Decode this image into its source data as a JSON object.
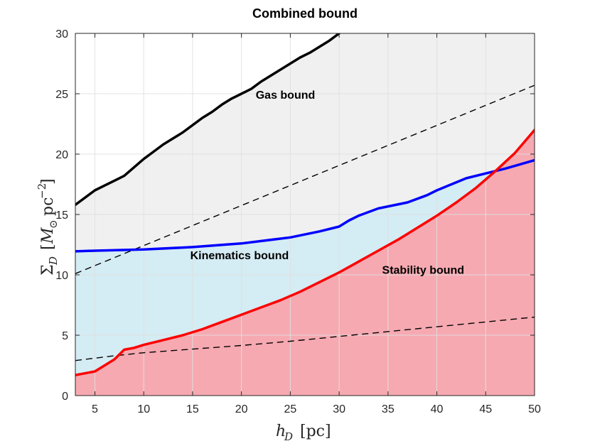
{
  "chart_data": {
    "type": "area",
    "title": "Combined bound",
    "xlabel": "$h_D$ [pc]",
    "ylabel": "$\\Sigma_D$ [$M_\\odot$ pc$^{-2}$]",
    "xlim": [
      3,
      50
    ],
    "ylim": [
      0,
      30
    ],
    "xticks": [
      5,
      10,
      15,
      20,
      25,
      30,
      35,
      40,
      45,
      50
    ],
    "yticks": [
      0,
      5,
      10,
      15,
      20,
      25,
      30
    ],
    "grid": true,
    "series": [
      {
        "name": "Gas bound",
        "color": "#000000",
        "fill": "#f0f0f0",
        "x": [
          3,
          4,
          5,
          6,
          7,
          8,
          9,
          10,
          11,
          12,
          13,
          14,
          15,
          16,
          17,
          18,
          19,
          20,
          21,
          22,
          23,
          24,
          25,
          26,
          27,
          28,
          29,
          30
        ],
        "y": [
          15.8,
          16.4,
          17.0,
          17.4,
          17.8,
          18.2,
          18.9,
          19.6,
          20.2,
          20.8,
          21.3,
          21.8,
          22.4,
          23.0,
          23.5,
          24.1,
          24.6,
          25.0,
          25.4,
          26.0,
          26.5,
          27.0,
          27.5,
          28.0,
          28.4,
          28.9,
          29.4,
          30.0
        ]
      },
      {
        "name": "Kinematics bound",
        "color": "#0000ff",
        "fill": "#d4ecf3",
        "x": [
          3,
          5,
          10,
          15,
          20,
          25,
          28,
          30,
          31,
          32,
          34,
          37,
          39,
          40,
          43,
          45,
          47,
          50
        ],
        "y": [
          11.95,
          12.0,
          12.1,
          12.3,
          12.6,
          13.1,
          13.6,
          14.0,
          14.5,
          14.9,
          15.5,
          16.0,
          16.6,
          17.0,
          18.0,
          18.4,
          18.8,
          19.5
        ]
      },
      {
        "name": "Stability bound",
        "color": "#ff0000",
        "fill": "#f6a9b1",
        "x": [
          3,
          5,
          7,
          8,
          9,
          10,
          12,
          14,
          16,
          18,
          20,
          22,
          24,
          26,
          28,
          30,
          32,
          34,
          36,
          38,
          40,
          42,
          44,
          46,
          48,
          50
        ],
        "y": [
          1.7,
          2.0,
          3.0,
          3.8,
          3.95,
          4.2,
          4.6,
          5.0,
          5.5,
          6.1,
          6.7,
          7.3,
          7.9,
          8.6,
          9.4,
          10.2,
          11.1,
          12.0,
          12.9,
          13.9,
          14.9,
          16.0,
          17.2,
          18.6,
          20.1,
          22.0
        ]
      }
    ],
    "reference_lines": [
      {
        "style": "dashed",
        "color": "#000000",
        "x": [
          3,
          50
        ],
        "y": [
          10.1,
          25.7
        ]
      },
      {
        "style": "dashed",
        "color": "#000000",
        "x": [
          3,
          7,
          10,
          15,
          20,
          25,
          30,
          35,
          40,
          45,
          50
        ],
        "y": [
          2.9,
          3.3,
          3.55,
          3.85,
          4.15,
          4.5,
          4.9,
          5.3,
          5.7,
          6.1,
          6.5
        ]
      }
    ],
    "annotations": [
      {
        "text": "Gas bound",
        "x": 24.5,
        "y": 24.6
      },
      {
        "text": "Kinematics bound",
        "x": 19.8,
        "y": 11.3
      },
      {
        "text": "Stability bound",
        "x": 38.6,
        "y": 10.1
      }
    ]
  }
}
